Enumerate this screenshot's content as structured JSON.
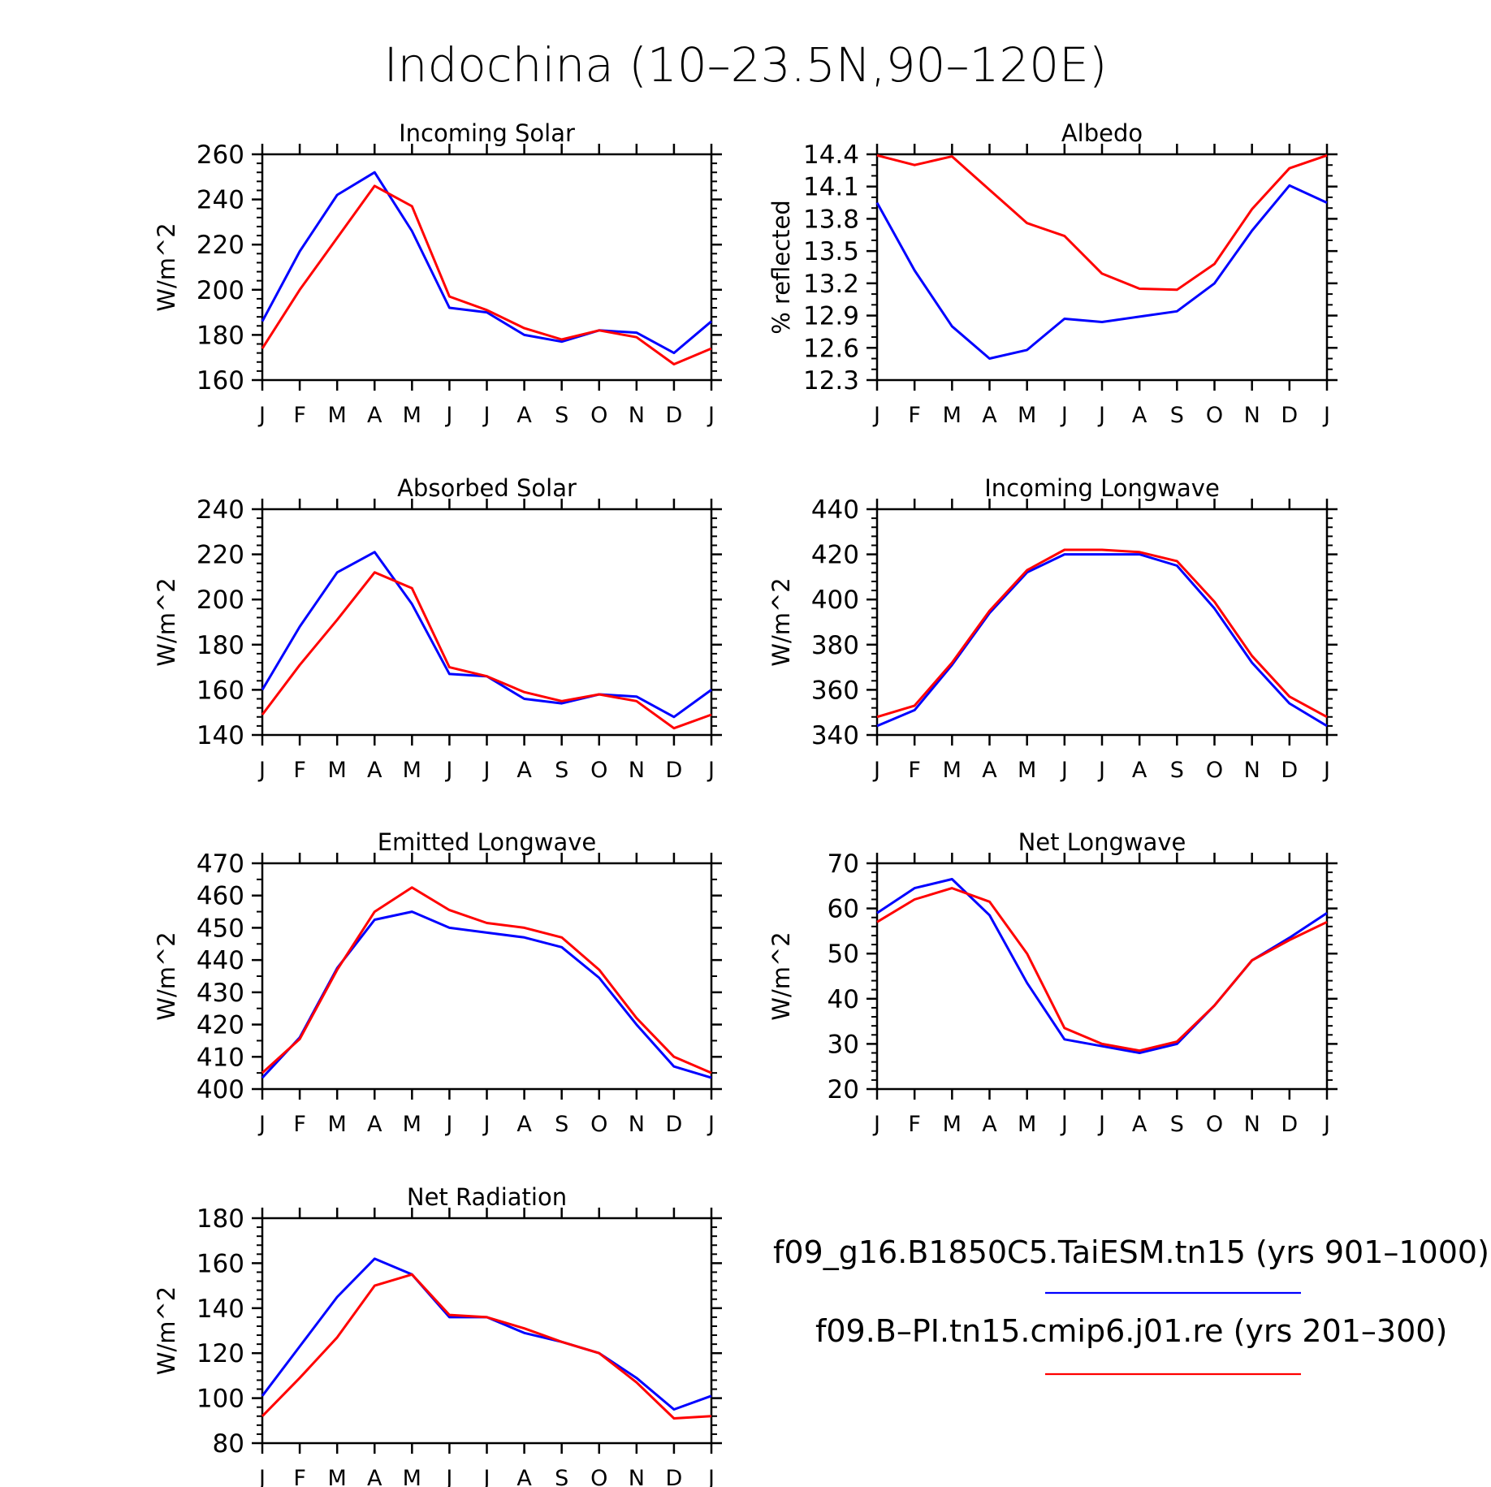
{
  "figure": {
    "title": "Indochina (10–23.5N,90–120E)"
  },
  "legend": {
    "entries": [
      {
        "label": "f09_g16.B1850C5.TaiESM.tn15 (yrs 901–1000)",
        "color": "#0000ff"
      },
      {
        "label": "f09.B–PI.tn15.cmip6.j01.re (yrs 201–300)",
        "color": "#ff0000"
      }
    ]
  },
  "chart_data": [
    {
      "type": "line",
      "title": "Incoming Solar",
      "ylabel": "W/m^2",
      "xlabel": "",
      "x": [
        "J",
        "F",
        "M",
        "A",
        "M",
        "J",
        "J",
        "A",
        "S",
        "O",
        "N",
        "D",
        "J"
      ],
      "ylim": [
        160,
        260
      ],
      "yticks": [
        "160",
        "180",
        "200",
        "220",
        "240",
        "260"
      ],
      "yminor": 4,
      "series": [
        {
          "color": "#0000ff",
          "values": [
            186,
            217,
            242,
            252,
            226,
            192,
            190,
            180,
            177,
            182,
            181,
            172,
            186
          ]
        },
        {
          "color": "#ff0000",
          "values": [
            174,
            200,
            223,
            246,
            237,
            197,
            191,
            183,
            178,
            182,
            179,
            167,
            174
          ]
        }
      ]
    },
    {
      "type": "line",
      "title": "Albedo",
      "ylabel": "% reflected",
      "xlabel": "",
      "x": [
        "J",
        "F",
        "M",
        "A",
        "M",
        "J",
        "J",
        "A",
        "S",
        "O",
        "N",
        "D",
        "J"
      ],
      "ylim": [
        12.3,
        14.4
      ],
      "yticks": [
        "12.3",
        "12.6",
        "12.9",
        "13.2",
        "13.5",
        "13.8",
        "14.1",
        "14.4"
      ],
      "yminor": 2,
      "series": [
        {
          "color": "#0000ff",
          "values": [
            13.95,
            13.32,
            12.8,
            12.5,
            12.58,
            12.87,
            12.84,
            12.89,
            12.94,
            13.2,
            13.69,
            14.11,
            13.95
          ]
        },
        {
          "color": "#ff0000",
          "values": [
            14.39,
            14.3,
            14.38,
            14.07,
            13.76,
            13.64,
            13.29,
            13.15,
            13.14,
            13.38,
            13.89,
            14.27,
            14.39
          ]
        }
      ]
    },
    {
      "type": "line",
      "title": "Absorbed Solar",
      "ylabel": "W/m^2",
      "xlabel": "",
      "x": [
        "J",
        "F",
        "M",
        "A",
        "M",
        "J",
        "J",
        "A",
        "S",
        "O",
        "N",
        "D",
        "J"
      ],
      "ylim": [
        140,
        240
      ],
      "yticks": [
        "140",
        "160",
        "180",
        "200",
        "220",
        "240"
      ],
      "yminor": 4,
      "series": [
        {
          "color": "#0000ff",
          "values": [
            160,
            188,
            212,
            221,
            198,
            167,
            166,
            156,
            154,
            158,
            157,
            148,
            160
          ]
        },
        {
          "color": "#ff0000",
          "values": [
            149,
            171,
            191,
            212,
            205,
            170,
            166,
            159,
            155,
            158,
            155,
            143,
            149
          ]
        }
      ]
    },
    {
      "type": "line",
      "title": "Incoming Longwave",
      "ylabel": "W/m^2",
      "xlabel": "",
      "x": [
        "J",
        "F",
        "M",
        "A",
        "M",
        "J",
        "J",
        "A",
        "S",
        "O",
        "N",
        "D",
        "J"
      ],
      "ylim": [
        340,
        440
      ],
      "yticks": [
        "340",
        "360",
        "380",
        "400",
        "420",
        "440"
      ],
      "yminor": 4,
      "series": [
        {
          "color": "#0000ff",
          "values": [
            344,
            351,
            371,
            394,
            412,
            420,
            420,
            420,
            415,
            396,
            372,
            354,
            344
          ]
        },
        {
          "color": "#ff0000",
          "values": [
            348,
            353,
            372,
            395,
            413,
            422,
            422,
            421,
            417,
            399,
            375,
            357,
            348
          ]
        }
      ]
    },
    {
      "type": "line",
      "title": "Emitted Longwave",
      "ylabel": "W/m^2",
      "xlabel": "",
      "x": [
        "J",
        "F",
        "M",
        "A",
        "M",
        "J",
        "J",
        "A",
        "S",
        "O",
        "N",
        "D",
        "J"
      ],
      "ylim": [
        400,
        470
      ],
      "yticks": [
        "400",
        "410",
        "420",
        "430",
        "440",
        "450",
        "460",
        "470"
      ],
      "yminor": 1,
      "series": [
        {
          "color": "#0000ff",
          "values": [
            403.5,
            416,
            437.5,
            452.5,
            455,
            450,
            448.5,
            447,
            444,
            434.5,
            420,
            407,
            403.5
          ]
        },
        {
          "color": "#ff0000",
          "values": [
            405,
            415.5,
            437,
            455,
            462.5,
            455.5,
            451.5,
            450,
            447,
            437,
            422,
            410,
            405
          ]
        }
      ]
    },
    {
      "type": "line",
      "title": "Net Longwave",
      "ylabel": "W/m^2",
      "xlabel": "",
      "x": [
        "J",
        "F",
        "M",
        "A",
        "M",
        "J",
        "J",
        "A",
        "S",
        "O",
        "N",
        "D",
        "J"
      ],
      "ylim": [
        20,
        70
      ],
      "yticks": [
        "20",
        "30",
        "40",
        "50",
        "60",
        "70"
      ],
      "yminor": 4,
      "series": [
        {
          "color": "#0000ff",
          "values": [
            59,
            64.5,
            66.5,
            58.5,
            43.5,
            31,
            29.5,
            28,
            30,
            38.5,
            48.5,
            53.5,
            59
          ]
        },
        {
          "color": "#ff0000",
          "values": [
            57,
            62,
            64.5,
            61.5,
            50,
            33.5,
            30,
            28.5,
            30.5,
            38.5,
            48.5,
            53,
            57
          ]
        }
      ]
    },
    {
      "type": "line",
      "title": "Net Radiation",
      "ylabel": "W/m^2",
      "xlabel": "",
      "x": [
        "J",
        "F",
        "M",
        "A",
        "M",
        "J",
        "J",
        "A",
        "S",
        "O",
        "N",
        "D",
        "J"
      ],
      "ylim": [
        80,
        180
      ],
      "yticks": [
        "80",
        "100",
        "120",
        "140",
        "160",
        "180"
      ],
      "yminor": 4,
      "series": [
        {
          "color": "#0000ff",
          "values": [
            101,
            123,
            145,
            162,
            155,
            136,
            136,
            129,
            125,
            120,
            109,
            95,
            101
          ]
        },
        {
          "color": "#ff0000",
          "values": [
            92,
            109,
            127,
            150,
            155,
            137,
            136,
            131,
            125,
            120,
            107,
            91,
            92
          ]
        }
      ]
    }
  ]
}
